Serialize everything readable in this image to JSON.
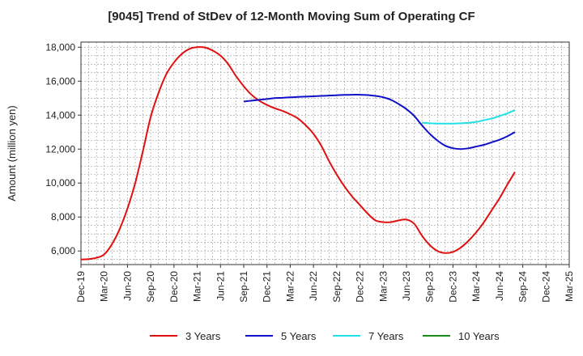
{
  "chart_data": {
    "type": "line",
    "title": "[9045]  Trend of StDev of 12-Month Moving Sum of Operating CF",
    "ylabel": "Amount (million yen)",
    "xlabel": "",
    "ylim": [
      5200,
      18300
    ],
    "yticks": [
      6000,
      8000,
      10000,
      12000,
      14000,
      16000,
      18000
    ],
    "ytick_labels": [
      "6,000",
      "8,000",
      "10,000",
      "12,000",
      "14,000",
      "16,000",
      "18,000"
    ],
    "xlim": [
      "2019-12",
      "2025-03"
    ],
    "xticks": [
      "Dec-19",
      "Mar-20",
      "Jun-20",
      "Sep-20",
      "Dec-20",
      "Mar-21",
      "Jun-21",
      "Sep-21",
      "Dec-21",
      "Mar-22",
      "Jun-22",
      "Sep-22",
      "Dec-22",
      "Mar-23",
      "Jun-23",
      "Sep-23",
      "Dec-23",
      "Mar-24",
      "Jun-24",
      "Sep-24",
      "Dec-24",
      "Mar-25"
    ],
    "grid": true,
    "legend_position": "bottom",
    "series": [
      {
        "name": "3 Years",
        "color": "#e01010",
        "points": [
          [
            "2019-12",
            5500
          ],
          [
            "2020-01",
            5520
          ],
          [
            "2020-02",
            5600
          ],
          [
            "2020-03",
            5800
          ],
          [
            "2020-04",
            6400
          ],
          [
            "2020-05",
            7300
          ],
          [
            "2020-06",
            8500
          ],
          [
            "2020-07",
            10000
          ],
          [
            "2020-08",
            11900
          ],
          [
            "2020-09",
            13900
          ],
          [
            "2020-10",
            15300
          ],
          [
            "2020-11",
            16400
          ],
          [
            "2020-12",
            17100
          ],
          [
            "2021-01",
            17600
          ],
          [
            "2021-02",
            17900
          ],
          [
            "2021-03",
            18000
          ],
          [
            "2021-04",
            17980
          ],
          [
            "2021-05",
            17800
          ],
          [
            "2021-06",
            17500
          ],
          [
            "2021-07",
            17000
          ],
          [
            "2021-08",
            16300
          ],
          [
            "2021-09",
            15700
          ],
          [
            "2021-10",
            15200
          ],
          [
            "2021-11",
            14850
          ],
          [
            "2021-12",
            14600
          ],
          [
            "2022-01",
            14400
          ],
          [
            "2022-02",
            14250
          ],
          [
            "2022-03",
            14050
          ],
          [
            "2022-04",
            13800
          ],
          [
            "2022-05",
            13400
          ],
          [
            "2022-06",
            12900
          ],
          [
            "2022-07",
            12200
          ],
          [
            "2022-08",
            11300
          ],
          [
            "2022-09",
            10500
          ],
          [
            "2022-10",
            9800
          ],
          [
            "2022-11",
            9200
          ],
          [
            "2022-12",
            8700
          ],
          [
            "2023-01",
            8200
          ],
          [
            "2023-02",
            7800
          ],
          [
            "2023-03",
            7700
          ],
          [
            "2023-04",
            7700
          ],
          [
            "2023-05",
            7800
          ],
          [
            "2023-06",
            7850
          ],
          [
            "2023-07",
            7600
          ],
          [
            "2023-08",
            6900
          ],
          [
            "2023-09",
            6350
          ],
          [
            "2023-10",
            6000
          ],
          [
            "2023-11",
            5880
          ],
          [
            "2023-12",
            5950
          ],
          [
            "2024-01",
            6200
          ],
          [
            "2024-02",
            6600
          ],
          [
            "2024-03",
            7100
          ],
          [
            "2024-04",
            7700
          ],
          [
            "2024-05",
            8400
          ],
          [
            "2024-06",
            9100
          ],
          [
            "2024-07",
            9900
          ],
          [
            "2024-08",
            10650
          ]
        ]
      },
      {
        "name": "5 Years",
        "color": "#1010c8",
        "points": [
          [
            "2021-09",
            14800
          ],
          [
            "2021-10",
            14850
          ],
          [
            "2021-11",
            14900
          ],
          [
            "2021-12",
            14950
          ],
          [
            "2022-01",
            15000
          ],
          [
            "2022-02",
            15020
          ],
          [
            "2022-03",
            15050
          ],
          [
            "2022-04",
            15070
          ],
          [
            "2022-05",
            15090
          ],
          [
            "2022-06",
            15110
          ],
          [
            "2022-07",
            15130
          ],
          [
            "2022-08",
            15150
          ],
          [
            "2022-09",
            15170
          ],
          [
            "2022-10",
            15190
          ],
          [
            "2022-11",
            15200
          ],
          [
            "2022-12",
            15200
          ],
          [
            "2023-01",
            15180
          ],
          [
            "2023-02",
            15130
          ],
          [
            "2023-03",
            15050
          ],
          [
            "2023-04",
            14900
          ],
          [
            "2023-05",
            14650
          ],
          [
            "2023-06",
            14350
          ],
          [
            "2023-07",
            13950
          ],
          [
            "2023-08",
            13400
          ],
          [
            "2023-09",
            12900
          ],
          [
            "2023-10",
            12500
          ],
          [
            "2023-11",
            12200
          ],
          [
            "2023-12",
            12050
          ],
          [
            "2024-01",
            12000
          ],
          [
            "2024-02",
            12050
          ],
          [
            "2024-03",
            12150
          ],
          [
            "2024-04",
            12250
          ],
          [
            "2024-05",
            12400
          ],
          [
            "2024-06",
            12550
          ],
          [
            "2024-07",
            12750
          ],
          [
            "2024-08",
            13000
          ]
        ]
      },
      {
        "name": "7 Years",
        "color": "#22e0e8",
        "points": [
          [
            "2023-08",
            13550
          ],
          [
            "2023-09",
            13520
          ],
          [
            "2023-10",
            13500
          ],
          [
            "2023-11",
            13500
          ],
          [
            "2023-12",
            13500
          ],
          [
            "2024-01",
            13520
          ],
          [
            "2024-02",
            13550
          ],
          [
            "2024-03",
            13600
          ],
          [
            "2024-04",
            13700
          ],
          [
            "2024-05",
            13800
          ],
          [
            "2024-06",
            13950
          ],
          [
            "2024-07",
            14100
          ],
          [
            "2024-08",
            14300
          ]
        ]
      },
      {
        "name": "10 Years",
        "color": "#1a8a1a",
        "points": []
      }
    ]
  }
}
